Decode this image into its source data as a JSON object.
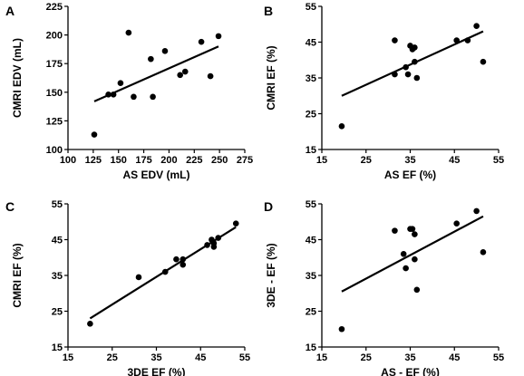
{
  "chart_data": [
    {
      "panel": "A",
      "type": "scatter",
      "title": "",
      "xlabel": "AS EDV (mL)",
      "ylabel": "CMRI EDV (mL)",
      "xlim": [
        100,
        275
      ],
      "ylim": [
        100,
        225
      ],
      "xticks": [
        100,
        125,
        150,
        175,
        200,
        225,
        250,
        275
      ],
      "yticks": [
        100,
        125,
        150,
        175,
        200,
        225
      ],
      "points": [
        {
          "x": 126,
          "y": 113
        },
        {
          "x": 140,
          "y": 148
        },
        {
          "x": 145,
          "y": 148
        },
        {
          "x": 152,
          "y": 158
        },
        {
          "x": 160,
          "y": 202
        },
        {
          "x": 165,
          "y": 146
        },
        {
          "x": 182,
          "y": 179
        },
        {
          "x": 184,
          "y": 146
        },
        {
          "x": 196,
          "y": 186
        },
        {
          "x": 211,
          "y": 165
        },
        {
          "x": 216,
          "y": 168
        },
        {
          "x": 232,
          "y": 194
        },
        {
          "x": 241,
          "y": 164
        },
        {
          "x": 249,
          "y": 199
        }
      ],
      "fit": {
        "x": [
          126,
          249
        ],
        "y": [
          142,
          190
        ]
      }
    },
    {
      "panel": "B",
      "type": "scatter",
      "title": "",
      "xlabel": "AS EF (%)",
      "ylabel": "CMRI EF (%)",
      "xlim": [
        15,
        55
      ],
      "ylim": [
        15,
        55
      ],
      "xticks": [
        15,
        25,
        35,
        45,
        55
      ],
      "yticks": [
        15,
        25,
        35,
        45,
        55
      ],
      "points": [
        {
          "x": 19.5,
          "y": 21.5
        },
        {
          "x": 31.5,
          "y": 45.5
        },
        {
          "x": 31.5,
          "y": 36
        },
        {
          "x": 34,
          "y": 38
        },
        {
          "x": 34.5,
          "y": 36
        },
        {
          "x": 35,
          "y": 44
        },
        {
          "x": 35.5,
          "y": 43
        },
        {
          "x": 36,
          "y": 39.5
        },
        {
          "x": 36,
          "y": 43.5
        },
        {
          "x": 36.5,
          "y": 35
        },
        {
          "x": 45.5,
          "y": 45.5
        },
        {
          "x": 48,
          "y": 45.5
        },
        {
          "x": 50,
          "y": 49.5
        },
        {
          "x": 51.5,
          "y": 39.5
        }
      ],
      "fit": {
        "x": [
          19.5,
          51.5
        ],
        "y": [
          30,
          48
        ]
      }
    },
    {
      "panel": "C",
      "type": "scatter",
      "title": "",
      "xlabel": "3DE EF (%)",
      "ylabel": "CMRI EF (%)",
      "xlim": [
        15,
        55
      ],
      "ylim": [
        15,
        55
      ],
      "xticks": [
        15,
        25,
        35,
        45,
        55
      ],
      "yticks": [
        15,
        25,
        35,
        45,
        55
      ],
      "points": [
        {
          "x": 20,
          "y": 21.5
        },
        {
          "x": 31,
          "y": 34.5
        },
        {
          "x": 37,
          "y": 36
        },
        {
          "x": 39.5,
          "y": 39.5
        },
        {
          "x": 41,
          "y": 38
        },
        {
          "x": 41,
          "y": 39.5
        },
        {
          "x": 46.5,
          "y": 43.5
        },
        {
          "x": 47.5,
          "y": 45
        },
        {
          "x": 48,
          "y": 44
        },
        {
          "x": 48,
          "y": 43
        },
        {
          "x": 49,
          "y": 45.5
        },
        {
          "x": 53,
          "y": 49.5
        }
      ],
      "fit": {
        "x": [
          20,
          53
        ],
        "y": [
          23,
          48.5
        ]
      }
    },
    {
      "panel": "D",
      "type": "scatter",
      "title": "",
      "xlabel": "AS - EF (%)",
      "ylabel": "3DE - EF (%)",
      "xlim": [
        15,
        55
      ],
      "ylim": [
        15,
        55
      ],
      "xticks": [
        15,
        25,
        35,
        45,
        55
      ],
      "yticks": [
        15,
        25,
        35,
        45,
        55
      ],
      "points": [
        {
          "x": 19.5,
          "y": 20
        },
        {
          "x": 31.5,
          "y": 47.5
        },
        {
          "x": 33.5,
          "y": 41
        },
        {
          "x": 34,
          "y": 37
        },
        {
          "x": 35,
          "y": 48
        },
        {
          "x": 35.5,
          "y": 48
        },
        {
          "x": 36,
          "y": 39.5
        },
        {
          "x": 36,
          "y": 46.5
        },
        {
          "x": 36.5,
          "y": 31
        },
        {
          "x": 45.5,
          "y": 49.5
        },
        {
          "x": 50,
          "y": 53
        },
        {
          "x": 51.5,
          "y": 41.5
        }
      ],
      "fit": {
        "x": [
          19.5,
          51.5
        ],
        "y": [
          30.5,
          51.5
        ]
      }
    }
  ]
}
